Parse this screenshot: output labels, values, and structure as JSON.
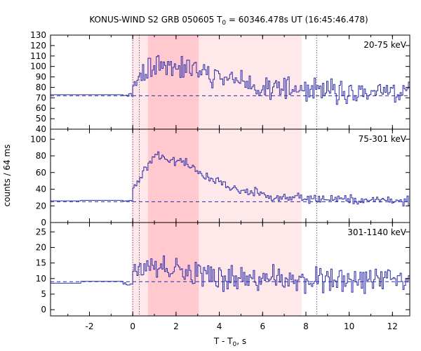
{
  "chart_data": {
    "type": "line",
    "title_prefix": "KONUS-WIND S2 GRB 050605 T",
    "title_sub": "0",
    "title_suffix": " = 60346.478s UT (16:45:46.478)",
    "xlabel_prefix": "T - T",
    "xlabel_sub": "0",
    "xlabel_suffix": ", s",
    "ylabel": "counts / 64 ms",
    "xlim": [
      -3.8,
      12.8
    ],
    "xticks": [
      -2,
      0,
      2,
      4,
      6,
      8,
      10,
      12
    ],
    "vertical_markers": [
      0.0,
      0.3,
      8.5
    ],
    "shaded_regions": [
      {
        "x": [
          -0.05,
          7.8
        ],
        "color": "#ffe8ea"
      },
      {
        "x": [
          0.7,
          3.05
        ],
        "color": "#ffc9cf"
      }
    ],
    "colors": {
      "series": "#2b2ba8",
      "marker": "#7a5a7a",
      "axis": "#000000"
    },
    "panels": [
      {
        "label": "20-75 keV",
        "ylim": [
          40,
          130
        ],
        "yticks": [
          40,
          50,
          60,
          70,
          80,
          90,
          100,
          110,
          120,
          130
        ],
        "background": 72,
        "pre_level": 73,
        "seed": 11,
        "profile": [
          {
            "t": 0.0,
            "v": 84
          },
          {
            "t": 0.5,
            "v": 96
          },
          {
            "t": 1.5,
            "v": 104
          },
          {
            "t": 3.0,
            "v": 96
          },
          {
            "t": 4.5,
            "v": 88
          },
          {
            "t": 6.0,
            "v": 80
          },
          {
            "t": 8.0,
            "v": 76
          },
          {
            "t": 10.0,
            "v": 75
          },
          {
            "t": 12.8,
            "v": 74
          }
        ],
        "noise": 14
      },
      {
        "label": "75-301 keV",
        "ylim": [
          0,
          112
        ],
        "yticks": [
          0,
          20,
          40,
          60,
          80,
          100
        ],
        "background": 25,
        "pre_level": 26,
        "seed": 23,
        "profile": [
          {
            "t": 0.0,
            "v": 42
          },
          {
            "t": 0.5,
            "v": 62
          },
          {
            "t": 1.0,
            "v": 82
          },
          {
            "t": 1.5,
            "v": 78
          },
          {
            "t": 2.5,
            "v": 70
          },
          {
            "t": 3.5,
            "v": 52
          },
          {
            "t": 5.0,
            "v": 38
          },
          {
            "t": 6.5,
            "v": 32
          },
          {
            "t": 8.0,
            "v": 29
          },
          {
            "t": 12.8,
            "v": 26
          }
        ],
        "noise": 7
      },
      {
        "label": "301-1140 keV",
        "ylim": [
          -2,
          28
        ],
        "yticks": [
          0,
          5,
          10,
          15,
          20,
          25
        ],
        "background": 9,
        "pre_level": 8.5,
        "seed": 37,
        "profile": [
          {
            "t": 0.0,
            "v": 13
          },
          {
            "t": 1.0,
            "v": 14
          },
          {
            "t": 2.0,
            "v": 13
          },
          {
            "t": 3.0,
            "v": 11
          },
          {
            "t": 5.0,
            "v": 10
          },
          {
            "t": 8.0,
            "v": 9.5
          },
          {
            "t": 12.8,
            "v": 9.5
          }
        ],
        "noise": 5
      }
    ]
  }
}
